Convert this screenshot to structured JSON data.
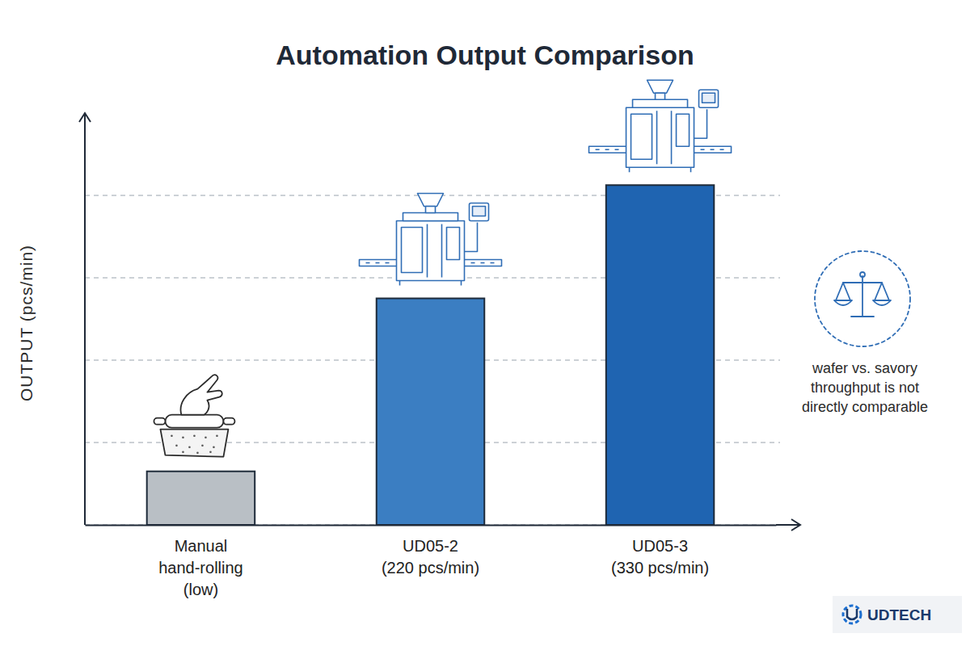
{
  "chart_data": {
    "type": "bar",
    "title": "Automation Output Comparison",
    "y_label": "OUTPUT (pcs/min)",
    "categories": [
      "Manual\nhand-rolling\n(low)",
      "UD05-2\n(220 pcs/min)",
      "UD05-3\n(330 pcs/min)"
    ],
    "values": [
      52,
      220,
      330
    ],
    "colors": [
      "#b9bfc5",
      "#3b7ec2",
      "#1f64b1"
    ],
    "ylim": [
      0,
      400
    ],
    "yticks": [
      0,
      80,
      160,
      240,
      320
    ],
    "grid": true,
    "tick_labels": "x",
    "annotation": "wafer vs. savory\nthroughput is not\ndirectly comparable",
    "watermark": "UDTECH"
  }
}
